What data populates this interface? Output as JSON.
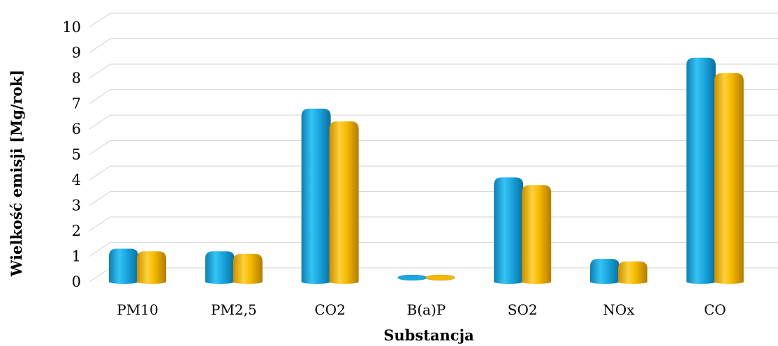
{
  "chart_data": {
    "type": "bar",
    "xlabel": "Substancja",
    "ylabel": "Wielkość emisji [Mg/rok]",
    "categories": [
      "PM10",
      "PM2,5",
      "CO2",
      "B(a)P",
      "SO2",
      "NOx",
      "CO"
    ],
    "series": [
      {
        "color": "#1aa7e0",
        "values": [
          1.3,
          1.2,
          6.8,
          0.0,
          4.1,
          0.9,
          8.8
        ]
      },
      {
        "color": "#f5b800",
        "values": [
          1.2,
          1.1,
          6.3,
          0.0,
          3.8,
          0.8,
          8.2
        ]
      }
    ],
    "ylim": [
      0,
      10
    ],
    "yticks": [
      "0",
      "1",
      "2",
      "3",
      "4",
      "5",
      "6",
      "7",
      "8",
      "9",
      "10"
    ],
    "grid": true,
    "style": "3d-cylinder"
  }
}
